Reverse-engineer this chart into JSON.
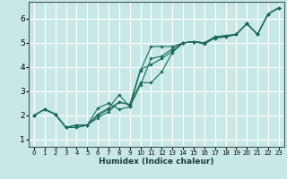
{
  "xlabel": "Humidex (Indice chaleur)",
  "ylabel": "",
  "xlim": [
    -0.5,
    23.5
  ],
  "ylim": [
    0.7,
    6.7
  ],
  "xticks": [
    0,
    1,
    2,
    3,
    4,
    5,
    6,
    7,
    8,
    9,
    10,
    11,
    12,
    13,
    14,
    15,
    16,
    17,
    18,
    19,
    20,
    21,
    22,
    23
  ],
  "yticks": [
    1,
    2,
    3,
    4,
    5,
    6
  ],
  "bg_color": "#c8e8e8",
  "grid_color": "#ffffff",
  "line_color": "#1a6b5a",
  "lines": [
    {
      "x": [
        0,
        1,
        2,
        3,
        4,
        5,
        6,
        7,
        8,
        9,
        10,
        11,
        12,
        13,
        14,
        15,
        16,
        17,
        18,
        19,
        20,
        21,
        22,
        23
      ],
      "y": [
        2.0,
        2.25,
        2.05,
        1.5,
        1.5,
        1.6,
        2.3,
        2.5,
        2.25,
        2.35,
        3.85,
        4.85,
        4.85,
        4.85,
        5.0,
        5.05,
        5.0,
        5.2,
        5.25,
        5.35,
        5.8,
        5.35,
        6.2,
        6.45
      ]
    },
    {
      "x": [
        0,
        1,
        2,
        3,
        4,
        5,
        6,
        7,
        8,
        9,
        10,
        11,
        12,
        13,
        14,
        15,
        16,
        17,
        18,
        19,
        20,
        21,
        22,
        23
      ],
      "y": [
        2.0,
        2.25,
        2.05,
        1.5,
        1.5,
        1.6,
        2.05,
        2.3,
        2.85,
        2.35,
        3.25,
        4.35,
        4.45,
        4.75,
        5.0,
        5.05,
        4.95,
        5.2,
        5.25,
        5.35,
        5.8,
        5.35,
        6.2,
        6.45
      ]
    },
    {
      "x": [
        0,
        1,
        2,
        3,
        4,
        5,
        6,
        7,
        8,
        9,
        10,
        11,
        12,
        13,
        14,
        15,
        16,
        17,
        18,
        19,
        20,
        21,
        22,
        23
      ],
      "y": [
        2.0,
        2.25,
        2.05,
        1.5,
        1.6,
        1.6,
        1.9,
        2.15,
        2.55,
        2.45,
        3.9,
        4.1,
        4.35,
        4.65,
        5.0,
        5.05,
        5.0,
        5.25,
        5.3,
        5.35,
        5.8,
        5.35,
        6.2,
        6.45
      ]
    },
    {
      "x": [
        0,
        1,
        2,
        3,
        4,
        5,
        6,
        7,
        8,
        9,
        10,
        11,
        12,
        13,
        14,
        15,
        16,
        17,
        18,
        19,
        20,
        21,
        22,
        23
      ],
      "y": [
        2.0,
        2.25,
        2.05,
        1.5,
        1.6,
        1.6,
        2.0,
        2.25,
        2.55,
        2.45,
        3.35,
        3.35,
        3.8,
        4.6,
        5.0,
        5.05,
        5.0,
        5.25,
        5.3,
        5.35,
        5.8,
        5.35,
        6.2,
        6.45
      ]
    }
  ]
}
